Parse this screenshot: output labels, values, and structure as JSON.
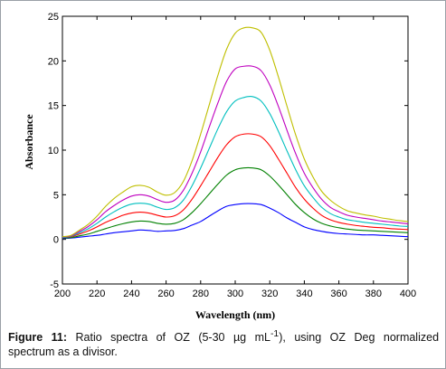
{
  "chart_data": {
    "type": "line",
    "title": "",
    "xlabel": "Wavelength (nm)",
    "ylabel": "Absorbance",
    "xlim": [
      200,
      400
    ],
    "ylim": [
      -5,
      25
    ],
    "xticks": [
      200,
      220,
      240,
      260,
      280,
      300,
      320,
      340,
      360,
      380,
      400
    ],
    "yticks": [
      -5,
      0,
      5,
      10,
      15,
      20,
      25
    ],
    "grid": false,
    "legend": "none",
    "x": [
      200,
      205,
      210,
      215,
      220,
      225,
      230,
      235,
      240,
      245,
      250,
      255,
      260,
      265,
      270,
      275,
      280,
      285,
      290,
      295,
      300,
      305,
      310,
      315,
      320,
      325,
      330,
      335,
      340,
      345,
      350,
      355,
      360,
      365,
      370,
      375,
      380,
      385,
      390,
      395,
      400
    ],
    "series": [
      {
        "color": "#0000ff",
        "values": [
          0.1,
          0.15,
          0.25,
          0.35,
          0.45,
          0.6,
          0.75,
          0.85,
          0.95,
          1.05,
          1.0,
          0.9,
          0.95,
          1.0,
          1.2,
          1.6,
          2.0,
          2.6,
          3.2,
          3.7,
          3.9,
          4.0,
          4.0,
          3.9,
          3.5,
          3.0,
          2.4,
          1.9,
          1.4,
          1.1,
          0.9,
          0.75,
          0.65,
          0.6,
          0.55,
          0.5,
          0.5,
          0.45,
          0.4,
          0.35,
          0.3
        ]
      },
      {
        "color": "#008000",
        "values": [
          0.15,
          0.2,
          0.4,
          0.6,
          0.9,
          1.2,
          1.5,
          1.75,
          1.95,
          2.05,
          2.0,
          1.8,
          1.7,
          1.8,
          2.2,
          3.0,
          4.0,
          5.1,
          6.2,
          7.2,
          7.8,
          8.0,
          8.0,
          7.8,
          7.1,
          6.1,
          5.0,
          3.9,
          3.0,
          2.3,
          1.8,
          1.5,
          1.3,
          1.15,
          1.05,
          1.0,
          0.95,
          0.9,
          0.85,
          0.8,
          0.75
        ]
      },
      {
        "color": "#ff0000",
        "values": [
          0.2,
          0.3,
          0.6,
          0.95,
          1.4,
          1.9,
          2.3,
          2.7,
          2.95,
          3.05,
          2.95,
          2.7,
          2.5,
          2.65,
          3.3,
          4.5,
          6.0,
          7.6,
          9.2,
          10.6,
          11.5,
          11.8,
          11.8,
          11.5,
          10.5,
          9.0,
          7.4,
          5.8,
          4.5,
          3.5,
          2.7,
          2.2,
          1.9,
          1.7,
          1.55,
          1.45,
          1.35,
          1.3,
          1.2,
          1.15,
          1.1
        ]
      },
      {
        "color": "#00bfbf",
        "values": [
          0.2,
          0.35,
          0.75,
          1.2,
          1.8,
          2.5,
          3.1,
          3.6,
          3.95,
          4.05,
          3.95,
          3.6,
          3.35,
          3.55,
          4.4,
          6.0,
          8.0,
          10.2,
          12.4,
          14.3,
          15.5,
          15.9,
          16.0,
          15.5,
          14.1,
          12.1,
          9.9,
          7.8,
          6.0,
          4.7,
          3.6,
          2.9,
          2.5,
          2.2,
          2.05,
          1.9,
          1.8,
          1.7,
          1.6,
          1.5,
          1.45
        ]
      },
      {
        "color": "#bf00bf",
        "values": [
          0.25,
          0.4,
          0.9,
          1.45,
          2.2,
          3.1,
          3.8,
          4.4,
          4.85,
          5.0,
          4.85,
          4.45,
          4.15,
          4.4,
          5.5,
          7.4,
          9.8,
          12.6,
          15.3,
          17.7,
          19.1,
          19.4,
          19.4,
          18.9,
          17.3,
          14.9,
          12.2,
          9.6,
          7.4,
          5.8,
          4.5,
          3.6,
          3.1,
          2.7,
          2.5,
          2.35,
          2.2,
          2.05,
          1.95,
          1.85,
          1.75
        ]
      },
      {
        "color": "#bfbf00",
        "values": [
          0.3,
          0.45,
          1.05,
          1.7,
          2.6,
          3.7,
          4.6,
          5.3,
          5.9,
          6.05,
          5.85,
          5.3,
          4.95,
          5.25,
          6.5,
          8.8,
          11.8,
          15.1,
          18.4,
          21.3,
          23.1,
          23.7,
          23.7,
          23.2,
          21.2,
          18.2,
          14.9,
          11.7,
          9.0,
          7.0,
          5.4,
          4.4,
          3.7,
          3.2,
          2.95,
          2.75,
          2.6,
          2.4,
          2.25,
          2.1,
          2.0
        ]
      }
    ]
  },
  "caption": {
    "label": "Figure 11:",
    "line1_text": " Ratio spectra of OZ (5-30 µg mL",
    "superscript": "-1",
    "line1_tail": "), using OZ Deg normalized",
    "line2_text": "spectrum as a divisor."
  }
}
